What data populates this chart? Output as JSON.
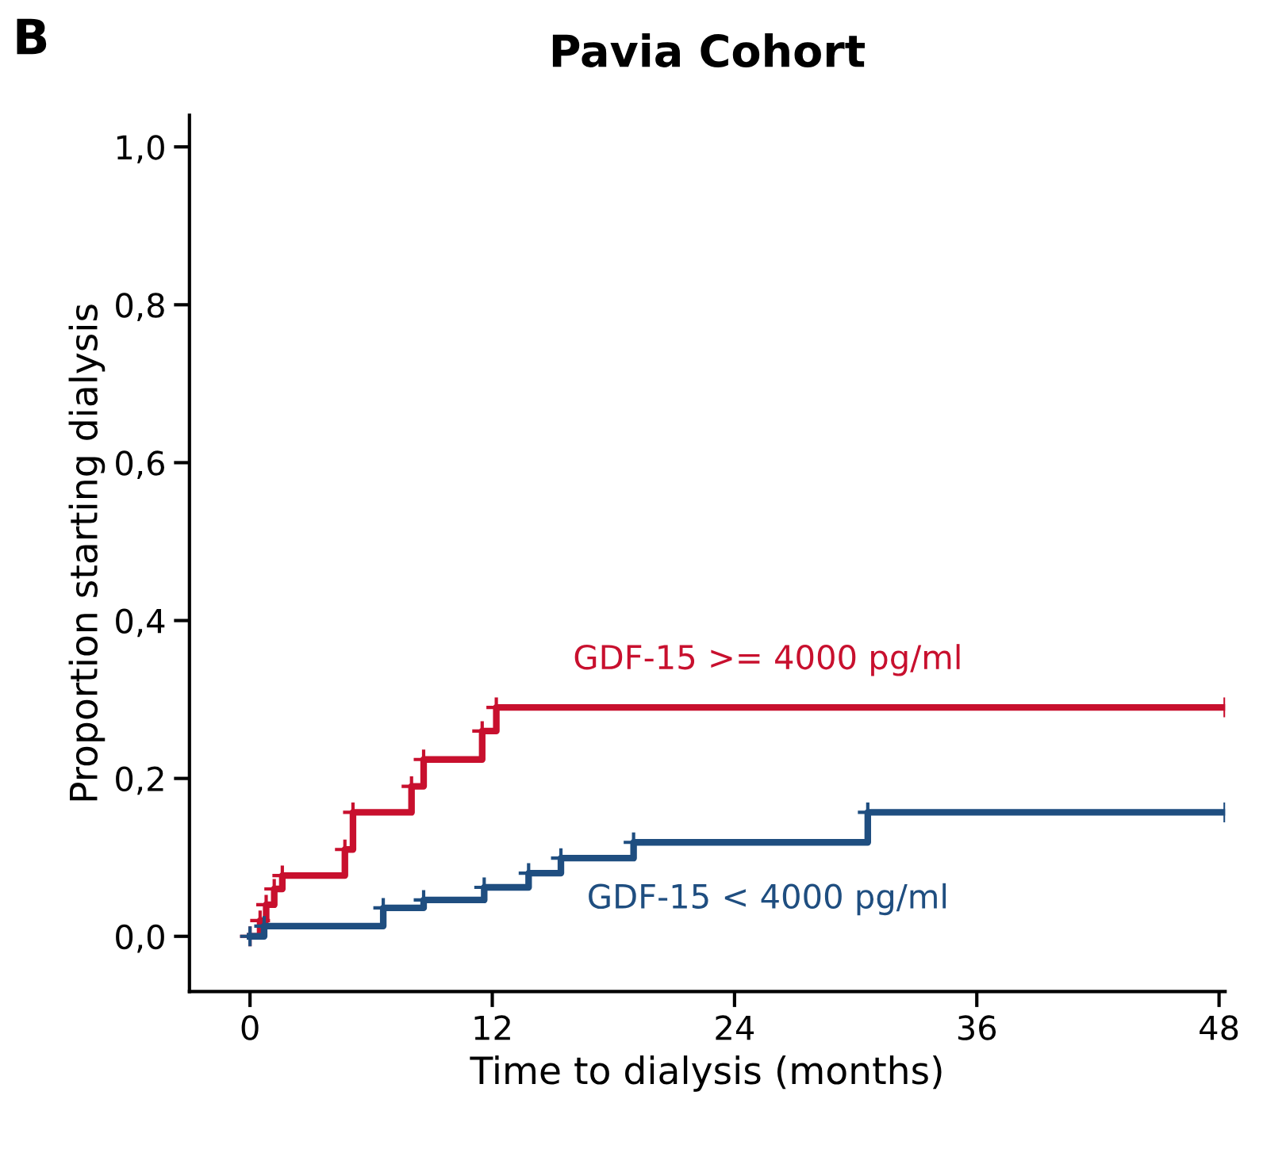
{
  "chart_data": {
    "type": "step",
    "title": "Pavia Cohort",
    "xlabel": "Time to dialysis (months)",
    "ylabel": "Proportion starting dialysis",
    "annotations": [
      "B"
    ],
    "series": [
      {
        "name": "GDF-15 >= 4000 pg/ml",
        "color": "#c8102e",
        "x": [
          0,
          0.5,
          0.8,
          1.2,
          1.6,
          4.7,
          5.1,
          8.0,
          8.6,
          11.5,
          12.2,
          48.3
        ],
        "values": [
          0,
          0.02,
          0.04,
          0.06,
          0.077,
          0.11,
          0.157,
          0.19,
          0.224,
          0.26,
          0.29,
          0.29
        ]
      },
      {
        "name": "GDF-15 < 4000 pg/ml",
        "color": "#1f4e80",
        "x": [
          0,
          0.7,
          6.6,
          8.6,
          11.6,
          13.8,
          15.4,
          19,
          30.6,
          48.3
        ],
        "values": [
          0,
          0.013,
          0.036,
          0.046,
          0.062,
          0.08,
          0.099,
          0.119,
          0.157,
          0.157
        ]
      }
    ],
    "xlim": [
      -3,
      48.3
    ],
    "xticks": [
      0,
      12,
      24,
      36,
      48
    ],
    "ylim": [
      -0.07,
      1.04
    ],
    "yticks": [
      {
        "value": 0,
        "label": "0,0"
      },
      {
        "value": 0.2,
        "label": "0,2"
      },
      {
        "value": 0.4,
        "label": "0,4"
      },
      {
        "value": 0.6,
        "label": "0,6"
      },
      {
        "value": 0.8,
        "label": "0,8"
      },
      {
        "value": 1.0,
        "label": "1,0"
      }
    ],
    "marker": "cross",
    "grid": false,
    "legend": false
  }
}
